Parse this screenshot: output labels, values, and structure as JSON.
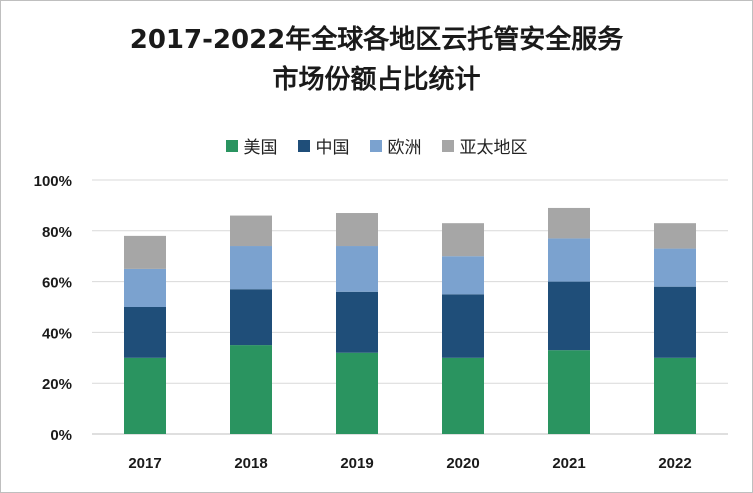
{
  "title_lines": [
    "2017-2022年全球各地区云托管安全服务",
    "市场份额占比统计"
  ],
  "chart_data": {
    "type": "bar",
    "stacked": true,
    "title": "2017-2022年全球各地区云托管安全服务市场份额占比统计",
    "categories": [
      "2017",
      "2018",
      "2019",
      "2020",
      "2021",
      "2022"
    ],
    "series": [
      {
        "name": "美国",
        "color": "#2a9460",
        "values": [
          30,
          35,
          32,
          30,
          33,
          30
        ]
      },
      {
        "name": "中国",
        "color": "#1f4e79",
        "values": [
          20,
          22,
          24,
          25,
          27,
          28
        ]
      },
      {
        "name": "欧洲",
        "color": "#7ba2cf",
        "values": [
          15,
          17,
          18,
          15,
          17,
          15
        ]
      },
      {
        "name": "亚太地区",
        "color": "#a6a6a6",
        "values": [
          13,
          12,
          13,
          13,
          12,
          10
        ]
      }
    ],
    "ylim": [
      0,
      100
    ],
    "yticks": [
      "0%",
      "20%",
      "40%",
      "60%",
      "80%",
      "100%"
    ],
    "grid": true,
    "legend": "top"
  }
}
